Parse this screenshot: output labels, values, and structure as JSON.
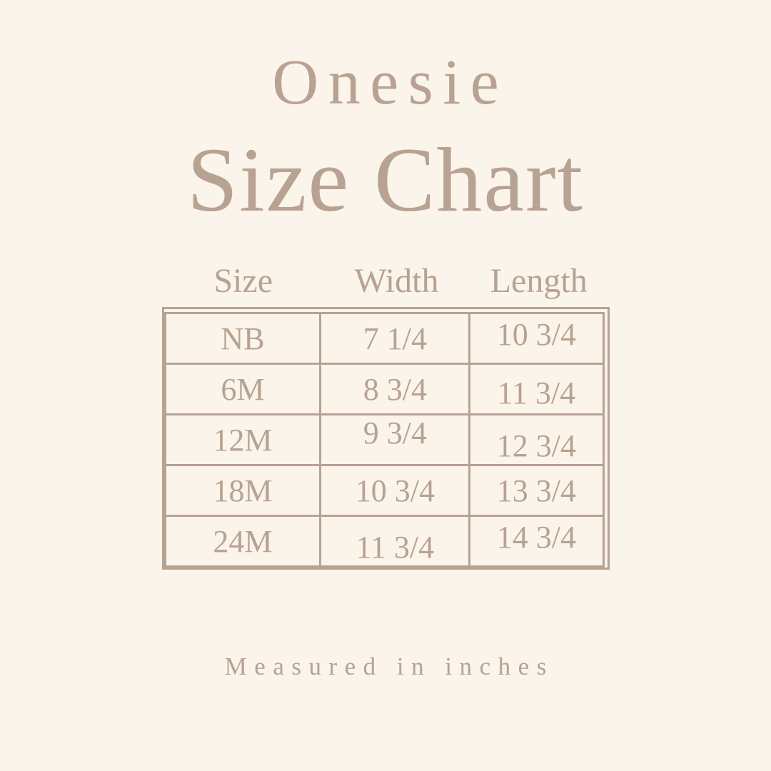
{
  "page": {
    "subtitle": "Onesie",
    "title": "Size Chart",
    "footnote": "Measured in inches"
  },
  "colors": {
    "background": "#FAF4EB",
    "foreground": "#B8A292"
  },
  "chart_data": {
    "type": "table",
    "title": "Onesie Size Chart",
    "columns": [
      "Size",
      "Width",
      "Length"
    ],
    "rows": [
      [
        "NB",
        "7 1/4",
        "10 3/4"
      ],
      [
        "6M",
        "8 3/4",
        "11 3/4"
      ],
      [
        "12M",
        "9 3/4",
        "12 3/4"
      ],
      [
        "18M",
        "10 3/4",
        "13 3/4"
      ],
      [
        "24M",
        "11 3/4",
        "14 3/4"
      ]
    ],
    "units": "inches"
  }
}
